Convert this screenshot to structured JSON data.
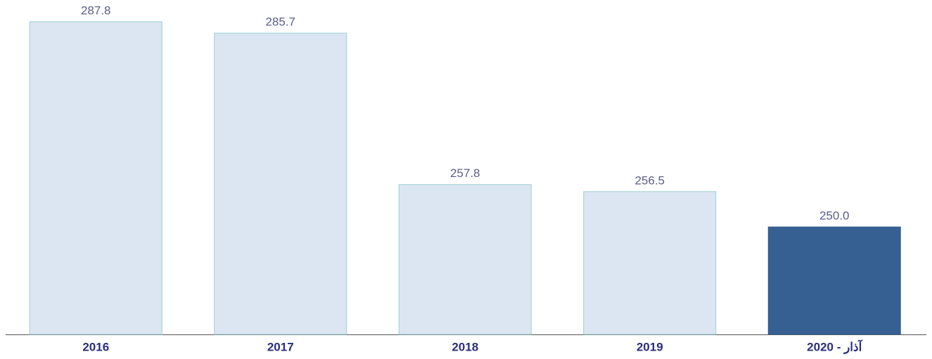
{
  "chart_data": {
    "type": "bar",
    "categories": [
      "2016",
      "2017",
      "2018",
      "2019",
      "آذار - 2020"
    ],
    "values": [
      287.8,
      285.7,
      257.8,
      256.5,
      250.0
    ],
    "value_labels": [
      "287.8",
      "285.7",
      "257.8",
      "256.5",
      "250.0"
    ],
    "colors": [
      "#dce6f2",
      "#dce6f2",
      "#dce6f2",
      "#dce6f2",
      "#366092"
    ],
    "ylim": [
      230.2,
      291.8
    ]
  }
}
